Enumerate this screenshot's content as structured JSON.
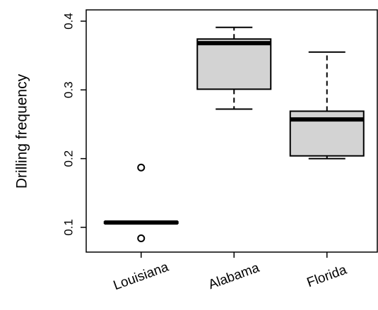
{
  "chart_data": {
    "type": "boxplot",
    "y_label": "Drilling frequency",
    "categories": [
      "Louisiana",
      "Alabama",
      "Florida"
    ],
    "boxes": [
      {
        "whislo": 0.106,
        "q1": 0.106,
        "med": 0.107,
        "q3": 0.108,
        "whishi": 0.108,
        "fliers": [
          0.187,
          0.084
        ]
      },
      {
        "whislo": 0.272,
        "q1": 0.301,
        "med": 0.368,
        "q3": 0.374,
        "whishi": 0.391,
        "fliers": []
      },
      {
        "whislo": 0.2,
        "q1": 0.204,
        "med": 0.257,
        "q3": 0.269,
        "whishi": 0.355,
        "fliers": []
      }
    ],
    "color": "#d3d3d3",
    "ylim": [
      0.064,
      0.4164
    ],
    "yticks": [
      0.1,
      0.2,
      0.3,
      0.4
    ]
  }
}
